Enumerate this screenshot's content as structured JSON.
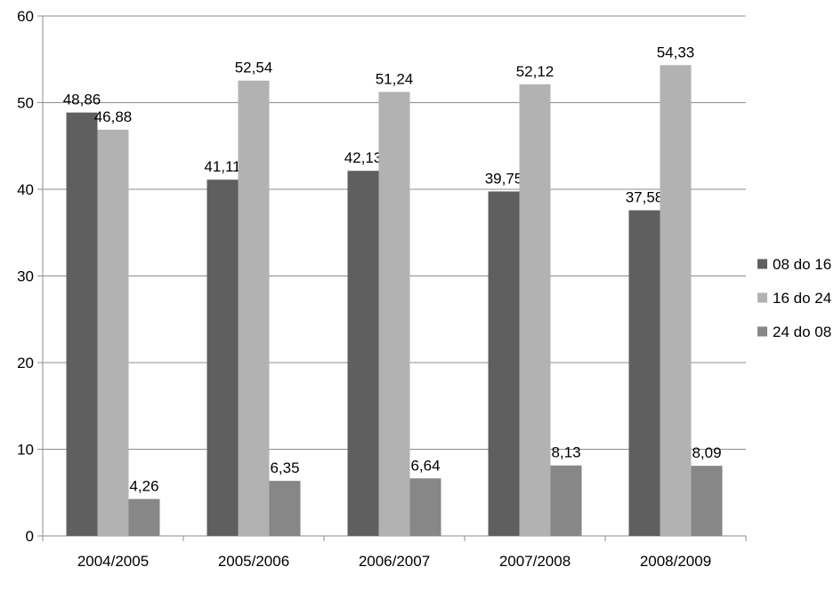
{
  "chart_data": {
    "type": "bar",
    "title": "",
    "xlabel": "",
    "ylabel": "",
    "categories": [
      "2004/2005",
      "2005/2006",
      "2006/2007",
      "2007/2008",
      "2008/2009"
    ],
    "series": [
      {
        "name": "08 do 16",
        "color": "#5f5f5f",
        "values": [
          48.86,
          41.11,
          42.13,
          39.75,
          37.58
        ],
        "labels": [
          "48,86",
          "41,11",
          "42,13",
          "39,75",
          "37,58"
        ]
      },
      {
        "name": "16 do 24",
        "color": "#b2b2b2",
        "values": [
          46.88,
          52.54,
          51.24,
          52.12,
          54.33
        ],
        "labels": [
          "46,88",
          "52,54",
          "51,24",
          "52,12",
          "54,33"
        ]
      },
      {
        "name": "24 do 08",
        "color": "#878787",
        "values": [
          4.26,
          6.35,
          6.64,
          8.13,
          8.09
        ],
        "labels": [
          "4,26",
          "6,35",
          "6,64",
          "8,13",
          "8,09"
        ]
      }
    ],
    "ylim": [
      0,
      60
    ],
    "yticks": [
      0,
      10,
      20,
      30,
      40,
      50,
      60
    ],
    "ytick_labels": [
      "0",
      "10",
      "20",
      "30",
      "40",
      "50",
      "60"
    ],
    "grid": true,
    "legend_position": "right"
  }
}
